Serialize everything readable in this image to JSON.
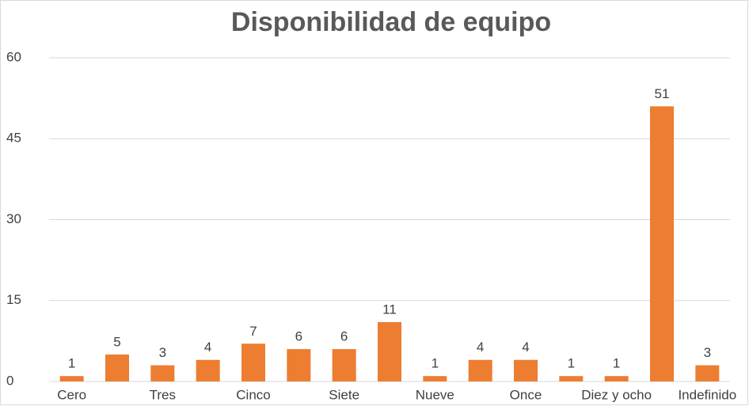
{
  "chart_data": {
    "type": "bar",
    "title": "Disponibilidad de equipo",
    "categories": [
      "Cero",
      null,
      "Tres",
      null,
      "Cinco",
      null,
      "Siete",
      null,
      "Nueve",
      null,
      "Once",
      null,
      "Diez y ocho",
      null,
      "Indefinido"
    ],
    "values": [
      1,
      5,
      3,
      4,
      7,
      6,
      6,
      11,
      1,
      4,
      4,
      1,
      1,
      51,
      3
    ],
    "color": "#ed7d31",
    "ylim": [
      0,
      60
    ],
    "yticks": [
      0,
      15,
      30,
      45,
      60
    ],
    "grid": true
  }
}
